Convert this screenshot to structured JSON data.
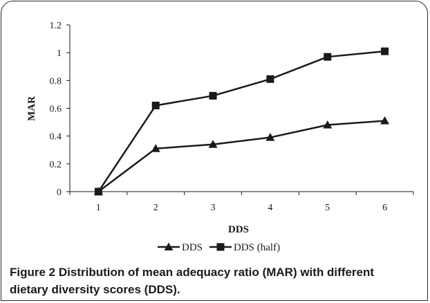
{
  "chart_data": {
    "type": "line",
    "categories": [
      "1",
      "2",
      "3",
      "4",
      "5",
      "6"
    ],
    "series": [
      {
        "name": "DDS",
        "marker": "triangle",
        "values": [
          0,
          0.31,
          0.34,
          0.39,
          0.48,
          0.51
        ]
      },
      {
        "name": "DDS (half)",
        "marker": "square",
        "values": [
          0,
          0.62,
          0.69,
          0.81,
          0.97,
          1.01
        ]
      }
    ],
    "title": "",
    "xlabel": "DDS",
    "ylabel": "MAR",
    "ylim": [
      0,
      1.2
    ],
    "yticks": [
      "0",
      "0.2",
      "0.4",
      "0.6",
      "0.8",
      "1",
      "1.2"
    ],
    "grid": false,
    "legend": "bottom-center",
    "line_color": "#1a1a1a"
  },
  "caption": {
    "label": "Figure 2",
    "text": "Distribution of mean adequacy ratio (MAR) with different dietary diversity scores (DDS)."
  }
}
